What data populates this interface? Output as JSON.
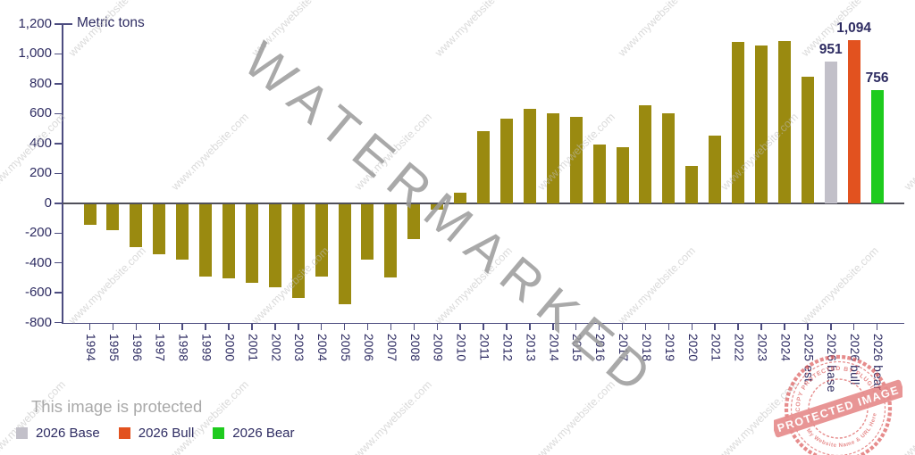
{
  "chart_data": {
    "type": "bar",
    "title": "Metric tons",
    "ylabel": "Metric tons",
    "ylim": [
      -800,
      1200
    ],
    "ytick_step": 200,
    "ytick_labels": [
      "1,200",
      "1,000",
      "800",
      "600",
      "400",
      "200",
      "0",
      "-200",
      "-400",
      "-600",
      "-800"
    ],
    "grid": false,
    "legend_position": "bottom-left",
    "colors": {
      "historical": "#9a8a10",
      "base": "#c2c0c9",
      "bull": "#e2521f",
      "bear": "#1ecb1e",
      "axis": "#4d4d80",
      "text": "#2e2c62"
    },
    "bars": [
      {
        "category": "1994",
        "value": -140
      },
      {
        "category": "1995",
        "value": -175
      },
      {
        "category": "1996",
        "value": -290
      },
      {
        "category": "1997",
        "value": -335
      },
      {
        "category": "1998",
        "value": -375
      },
      {
        "category": "1999",
        "value": -485
      },
      {
        "category": "2000",
        "value": -495
      },
      {
        "category": "2001",
        "value": -530
      },
      {
        "category": "2002",
        "value": -555
      },
      {
        "category": "2003",
        "value": -630
      },
      {
        "category": "2004",
        "value": -485
      },
      {
        "category": "2005",
        "value": -670
      },
      {
        "category": "2006",
        "value": -370
      },
      {
        "category": "2007",
        "value": -490
      },
      {
        "category": "2008",
        "value": -235
      },
      {
        "category": "2009",
        "value": -35
      },
      {
        "category": "2010",
        "value": 70
      },
      {
        "category": "2011",
        "value": 480
      },
      {
        "category": "2012",
        "value": 565
      },
      {
        "category": "2013",
        "value": 630
      },
      {
        "category": "2014",
        "value": 605
      },
      {
        "category": "2015",
        "value": 580
      },
      {
        "category": "2016",
        "value": 395
      },
      {
        "category": "2017",
        "value": 375
      },
      {
        "category": "2018",
        "value": 655
      },
      {
        "category": "2019",
        "value": 605
      },
      {
        "category": "2020",
        "value": 250
      },
      {
        "category": "2021",
        "value": 450
      },
      {
        "category": "2022",
        "value": 1080
      },
      {
        "category": "2023",
        "value": 1055
      },
      {
        "category": "2024",
        "value": 1085
      },
      {
        "category": "2025 est.",
        "value": 845
      },
      {
        "category": "2026 base",
        "value": 951,
        "label": "951",
        "color": "#c2c0c9"
      },
      {
        "category": "2026 bull",
        "value": 1094,
        "label": "1,094",
        "color": "#e2521f"
      },
      {
        "category": "2026 bear",
        "value": 756,
        "label": "756",
        "color": "#1ecb1e"
      }
    ],
    "legend": [
      {
        "label": "2026 Base",
        "color": "#c2c0c9"
      },
      {
        "label": "2026 Bull",
        "color": "#e2521f"
      },
      {
        "label": "2026 Bear",
        "color": "#1ecb1e"
      }
    ]
  },
  "watermark": {
    "big_text": "WATERMARKED",
    "tile_text": "www.mywebsite.com",
    "protect_notice": "This image is protected",
    "stamp": {
      "band_text": "PROTECTED IMAGE",
      "arc_top": "COPY PROTECTED BY PLUGIN",
      "arc_bottom": "My Website Name & URL Here",
      "color": "#dd6161"
    }
  }
}
